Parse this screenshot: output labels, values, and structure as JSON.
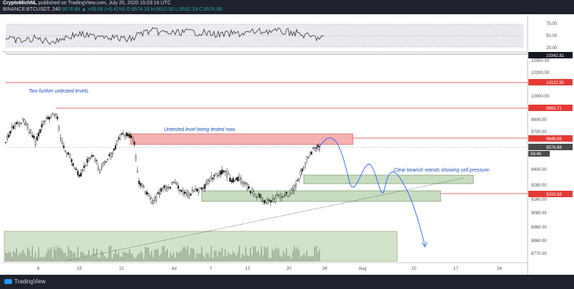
{
  "header": {
    "line1_author": "CryptoMichNL",
    "line1_rest": " published on TradingView.com, July 25, 2020 15:03:16 UTC",
    "line2_prefix": "BINANCE:BTCUSDT, 240 ",
    "line2_values": "9576.88 ▲ +39.08 (+0.41%) O:9574.29 H:9610.92 L:9552.29 C:9576.88"
  },
  "footer": {
    "brand": "TradingView"
  },
  "rsi": {
    "levels": [
      "75.00",
      "50.00",
      "25.00"
    ]
  },
  "price_axis": {
    "labels": [
      "10300.00",
      "10200.00",
      "10000.00",
      "9800.00",
      "9700.00",
      "9400.00",
      "9280.00",
      "9160.00",
      "9060.00",
      "8960.00",
      "8860.00",
      "8770.00"
    ]
  },
  "time_axis": {
    "labels": [
      "8",
      "15",
      "22",
      "Jul",
      "7",
      "13",
      "20",
      "26",
      "Aug",
      "10",
      "17",
      "24"
    ]
  },
  "badges": {
    "b10342": "10342.81",
    "b10113": "10113.35",
    "b9893": "9893.71",
    "b9648": "9648.08",
    "b9576": "9576.88",
    "b_time": "56:46",
    "b9203": "9203.58"
  },
  "annotations": {
    "untested_levels": "Two further untested levels.",
    "being_tested": "Untested level being tested now.",
    "bearish_retests": "Clear bearish retests showing sell pressure."
  },
  "colors": {
    "resistance_line": "#e53935",
    "resistance_zone": "#f5a5a5",
    "support_zone": "#c8dcc0",
    "projection": "#2962ff",
    "candle": "#111111"
  },
  "chart_data": {
    "type": "candlestick",
    "symbol": "BINANCE:BTCUSDT",
    "timeframe": "240",
    "last_price": 9576.88,
    "horizontal_levels": [
      10113.35,
      9893.71,
      9648.08,
      9203.58
    ],
    "price_range": [
      8700,
      10400
    ]
  }
}
